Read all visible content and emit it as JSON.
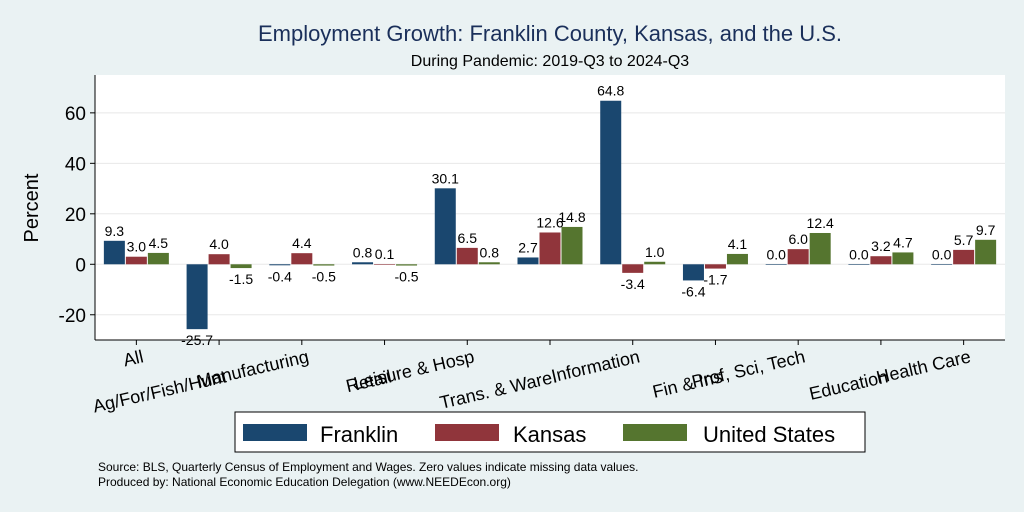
{
  "chart_data": {
    "type": "bar",
    "title": "Employment Growth: Franklin County, Kansas, and the U.S.",
    "subtitle": "During Pandemic: 2019-Q3 to 2024-Q3",
    "xlabel": "",
    "ylabel": "Percent",
    "ylim": [
      -30,
      75
    ],
    "yticks": [
      -20,
      0,
      20,
      40,
      60
    ],
    "ytick_labels": [
      "-20",
      "0",
      "20",
      "40",
      "60"
    ],
    "grid": true,
    "legend_position": "bottom",
    "categories": [
      "All",
      "Ag/For/Fish/Hunt",
      "Manufacturing",
      "Retail",
      "Leisure & Hosp",
      "Trans. & Ware.",
      "Information",
      "Fin & Ins",
      "Prof, Sci, Tech",
      "Education",
      "Health Care"
    ],
    "series": [
      {
        "name": "Franklin",
        "color": "#1a476f",
        "values": [
          9.3,
          -25.7,
          -0.4,
          0.8,
          30.1,
          2.7,
          64.8,
          -6.4,
          0.0,
          0.0,
          0.0
        ],
        "labels": [
          "9.3",
          "-25.7",
          "-0.4",
          "0.8",
          "30.1",
          "2.7",
          "64.8",
          "-6.4",
          "0.0",
          "0.0",
          "0.0"
        ]
      },
      {
        "name": "Kansas",
        "color": "#90353b",
        "values": [
          3.0,
          4.0,
          4.4,
          0.1,
          6.5,
          12.6,
          -3.4,
          -1.7,
          6.0,
          3.2,
          5.7
        ],
        "labels": [
          "3.0",
          "4.0",
          "4.4",
          "0.1",
          "6.5",
          "12.6",
          "-3.4",
          "-1.7",
          "6.0",
          "3.2",
          "5.7"
        ]
      },
      {
        "name": "United States",
        "color": "#55752f",
        "values": [
          4.5,
          -1.5,
          -0.5,
          -0.5,
          0.8,
          14.8,
          1.0,
          4.1,
          12.4,
          4.7,
          9.7
        ],
        "labels": [
          "4.5",
          "-1.5",
          "-0.5",
          "-0.5",
          "0.8",
          "14.8",
          "1.0",
          "4.1",
          "12.4",
          "4.7",
          "9.7"
        ]
      }
    ]
  },
  "source_line": "Source: BLS, Quarterly Census of Employment and Wages. Zero values indicate missing data values.",
  "produced_line": "Produced by: National Economic Education Delegation (www.NEEDEcon.org)"
}
